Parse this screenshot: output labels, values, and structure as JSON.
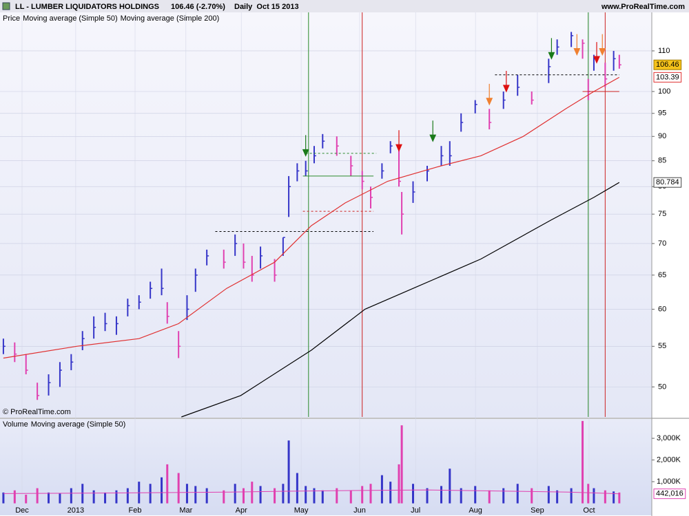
{
  "chart_data": {
    "type": "ohlc",
    "title": "LL - LUMBER LIQUIDATORS HOLDINGS",
    "last_change": "106.46 (-2.70%)",
    "period": "Daily  Oct 15 2013",
    "source": "www.ProRealTime.com",
    "copyright": "© ProRealTime.com",
    "log_scale": true,
    "grid": true,
    "xlim": [
      -1.2,
      229.5
    ],
    "xticks": [
      {
        "value": 6.6,
        "label": "Dec"
      },
      {
        "value": 25.6,
        "label": "2013"
      },
      {
        "value": 46.6,
        "label": "Feb"
      },
      {
        "value": 64.6,
        "label": "Mar"
      },
      {
        "value": 84.2,
        "label": "Apr"
      },
      {
        "value": 105.4,
        "label": "May"
      },
      {
        "value": 126.1,
        "label": "Jun"
      },
      {
        "value": 145.9,
        "label": "Jul"
      },
      {
        "value": 167.1,
        "label": "Aug"
      },
      {
        "value": 189,
        "label": "Sep"
      },
      {
        "value": 207.3,
        "label": "Oct"
      }
    ],
    "ylim": [
      46.6,
      120.4
    ],
    "yticks": [
      50,
      55,
      60,
      65,
      70,
      75,
      80,
      85,
      90,
      95,
      100,
      110
    ],
    "up_color": "#3535c8",
    "down_color": "#e040b0",
    "series": [
      {
        "name": "Price",
        "color": "#000000",
        "x": [
          0,
          4,
          8,
          12,
          16,
          20,
          24,
          28,
          32,
          36,
          40,
          44,
          48,
          52,
          56,
          58,
          62,
          65,
          68,
          72,
          78,
          82,
          85,
          88,
          91,
          96,
          99,
          101,
          104,
          107,
          110,
          113,
          118,
          123,
          127,
          130,
          134,
          137,
          140,
          141,
          145,
          150,
          155,
          158,
          162,
          167,
          172,
          177,
          182,
          187,
          193,
          196,
          201,
          205,
          207,
          209,
          213,
          216,
          218
        ],
        "values": [
          55,
          54,
          52,
          49,
          50.5,
          52,
          53,
          56,
          57.5,
          58,
          58,
          60.5,
          61,
          63,
          63,
          59,
          55,
          60,
          65,
          68,
          67,
          70,
          67,
          65,
          68,
          65,
          71,
          80,
          83,
          83,
          86,
          89,
          88,
          84,
          81,
          78,
          83,
          88,
          81,
          75,
          79,
          83,
          86,
          86,
          93,
          97,
          93,
          98,
          101,
          98,
          106,
          111,
          114,
          112,
          100,
          108,
          103,
          108,
          106.46
        ],
        "high": [
          56,
          55.5,
          54,
          50.5,
          51.5,
          53,
          54,
          57,
          59,
          59.5,
          59,
          61.5,
          62,
          64,
          66,
          61,
          57,
          62,
          66,
          69,
          69,
          71.5,
          70,
          68,
          69.5,
          67.5,
          71,
          82,
          84.5,
          85,
          88,
          90.5,
          90,
          86,
          83,
          80,
          84.5,
          89,
          88,
          79,
          81,
          84,
          88,
          89,
          95,
          98,
          96,
          100,
          104,
          100,
          108,
          113,
          115,
          113,
          103,
          109,
          107,
          110,
          109
        ],
        "low": [
          54,
          53,
          51.5,
          48.5,
          49,
          50,
          52,
          54.5,
          56,
          57,
          56.5,
          59,
          60,
          61.5,
          62,
          58,
          53.5,
          58.5,
          62.5,
          66.5,
          66,
          68,
          66,
          64,
          66,
          64,
          68,
          74.5,
          81,
          82,
          84.5,
          87.5,
          86,
          82,
          79.5,
          76,
          81.5,
          86.5,
          80,
          71.5,
          77,
          81,
          84,
          84,
          91,
          95,
          91.5,
          96,
          99,
          97,
          102,
          109,
          111,
          108,
          98,
          105,
          101,
          105,
          105.5
        ]
      },
      {
        "name": "Moving average (Simple 50)",
        "color": "#e03030",
        "x": [
          0,
          26,
          48,
          62,
          79,
          96,
          109,
          121,
          136,
          155,
          169,
          184,
          199,
          209,
          218
        ],
        "values": [
          53.5,
          55,
          56,
          58,
          63,
          67,
          73,
          77,
          81,
          84,
          86,
          90,
          96,
          100,
          103.39
        ]
      },
      {
        "name": "Moving average (Simple 200)",
        "color": "#000000",
        "x": [
          63,
          84,
          109,
          128,
          145,
          169,
          194,
          209,
          218
        ],
        "values": [
          46.6,
          49,
          54.5,
          60,
          63,
          67.5,
          74,
          78,
          80.784
        ]
      }
    ],
    "events": [
      {
        "x": 108,
        "color": "#2a8a2a"
      },
      {
        "x": 127,
        "color": "#cc2020"
      },
      {
        "x": 207,
        "color": "#2a8a2a"
      },
      {
        "x": 213,
        "color": "#cc2020"
      }
    ],
    "signals": [
      {
        "x": 107,
        "y": 86,
        "color": "#1a7a1a"
      },
      {
        "x": 140,
        "y": 87,
        "color": "#dd1010"
      },
      {
        "x": 152,
        "y": 89,
        "color": "#1a7a1a"
      },
      {
        "x": 172,
        "y": 97,
        "color": "#f08030"
      },
      {
        "x": 178,
        "y": 100,
        "color": "#dd1010"
      },
      {
        "x": 194,
        "y": 108,
        "color": "#1a7a1a"
      },
      {
        "x": 203,
        "y": 109,
        "color": "#f08030"
      },
      {
        "x": 210,
        "y": 107,
        "color": "#dd1010"
      },
      {
        "x": 212,
        "y": 109,
        "color": "#f08030"
      }
    ],
    "levels": [
      {
        "x": [
          75,
          131
        ],
        "y": 72,
        "color": "#000000",
        "dash": true
      },
      {
        "x": [
          107,
          132
        ],
        "y": 86.5,
        "color": "#2a8a2a",
        "dash": true
      },
      {
        "x": [
          106,
          131
        ],
        "y": 75.5,
        "color": "#cc2020",
        "dash": true
      },
      {
        "x": [
          106,
          131
        ],
        "y": 82,
        "color": "#2a8a2a",
        "dash": false
      },
      {
        "x": [
          174,
          218
        ],
        "y": 104,
        "color": "#000000",
        "dash": true
      },
      {
        "x": [
          205,
          218
        ],
        "y": 100,
        "color": "#cc2020",
        "dash": false
      }
    ],
    "volume": {
      "name": "Volume",
      "color": "#e040b0",
      "ylim": [
        -520000,
        3860000
      ],
      "yticks": [
        {
          "value": 1000000,
          "label": "1,000K"
        },
        {
          "value": 2000000,
          "label": "2,000K"
        },
        {
          "value": 3000000,
          "label": "3,000K"
        }
      ],
      "values": [
        500000,
        600000,
        400000,
        700000,
        500000,
        450000,
        700000,
        900000,
        600000,
        500000,
        600000,
        700000,
        1000000,
        900000,
        1200000,
        1800000,
        1400000,
        900000,
        800000,
        700000,
        600000,
        900000,
        700000,
        1000000,
        800000,
        700000,
        900000,
        2900000,
        1400000,
        800000,
        700000,
        600000,
        700000,
        600000,
        800000,
        900000,
        1300000,
        1000000,
        1800000,
        3600000,
        900000,
        700000,
        800000,
        1600000,
        700000,
        800000,
        600000,
        700000,
        900000,
        700000,
        800000,
        600000,
        700000,
        3800000,
        900000,
        700000,
        600000,
        550000,
        500000
      ],
      "ma": {
        "name": "Moving average (Simple 50)",
        "color": "#e040b0",
        "x": [
          0,
          40,
          80,
          100,
          130,
          150,
          180,
          200,
          218
        ],
        "values": [
          450000,
          480000,
          520000,
          560000,
          600000,
          620000,
          560000,
          520000,
          442016
        ],
        "last_label": "442,016"
      }
    }
  }
}
